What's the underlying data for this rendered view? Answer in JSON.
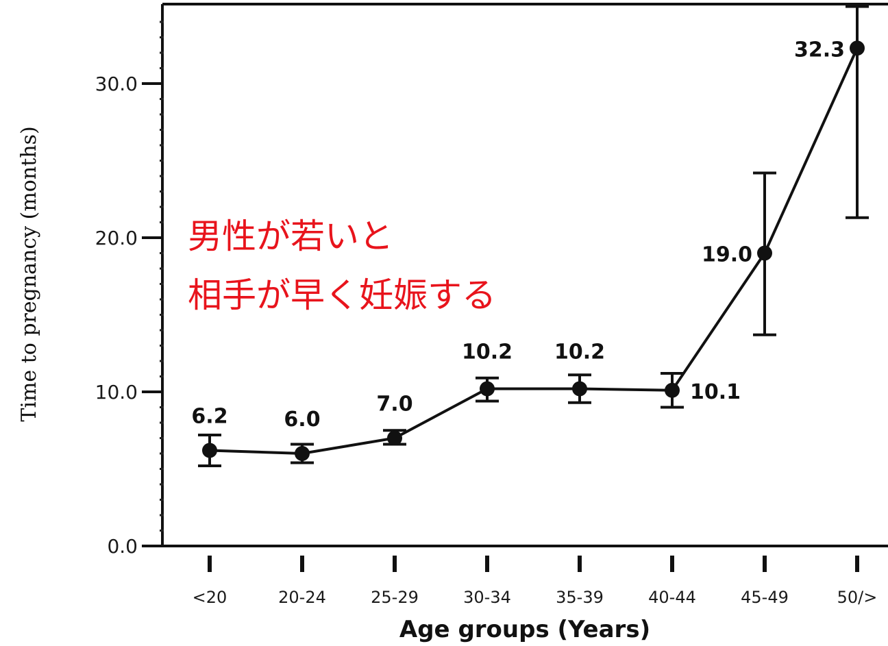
{
  "chart_data": {
    "type": "line",
    "title": "",
    "xlabel": "Age groups (Years)",
    "ylabel": "Time to pregnancy (months)",
    "ylim": [
      0,
      35
    ],
    "yticks": [
      {
        "value": 0,
        "label": "0.0"
      },
      {
        "value": 10,
        "label": "10.0"
      },
      {
        "value": 20,
        "label": "20.0"
      },
      {
        "value": 30,
        "label": "30.0"
      }
    ],
    "categories": [
      "<20",
      "20-24",
      "25-29",
      "30-34",
      "35-39",
      "40-44",
      "45-49",
      "50/>"
    ],
    "series": [
      {
        "values": [
          6.2,
          6.0,
          7.0,
          10.2,
          10.2,
          10.1,
          19.0,
          32.3
        ],
        "error_low": [
          5.2,
          5.4,
          6.6,
          9.4,
          9.3,
          9.0,
          13.7,
          21.3
        ],
        "error_high": [
          7.2,
          6.6,
          7.5,
          10.9,
          11.1,
          11.2,
          24.2,
          35
        ],
        "labels": [
          "6.2",
          "6.0",
          "7.0",
          "10.2",
          "10.2",
          "10.1",
          "19.0",
          "32.3"
        ]
      }
    ],
    "annotations": [
      {
        "lines": [
          "男性が若いと",
          "相手が早く妊娠する"
        ],
        "color": "#e8141c"
      }
    ],
    "grid": false,
    "legend": "none"
  }
}
